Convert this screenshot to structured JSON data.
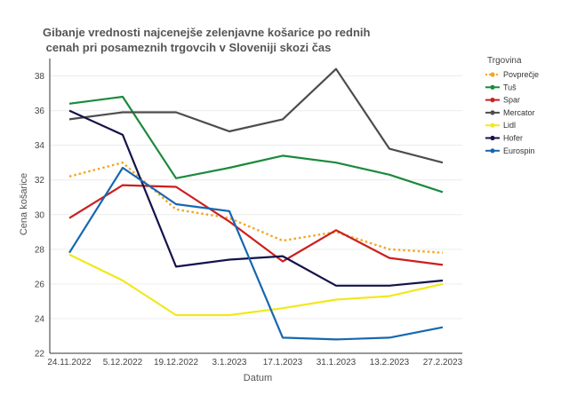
{
  "chart_data": {
    "type": "line",
    "title_lines": [
      "Gibanje vrednosti najcenejše zelenjavne košarice  po rednih",
      " cenah pri posameznih trgovcih v Sloveniji skozi čas"
    ],
    "xlabel": "Datum",
    "ylabel": "Cena košarice",
    "categories": [
      "24.11.2022",
      "5.12.2022",
      "19.12.2022",
      "3.1.2023",
      "17.1.2023",
      "31.1.2023",
      "13.2.2023",
      "27.2.2023"
    ],
    "ylim": [
      22,
      39
    ],
    "yticks": [
      22,
      24,
      26,
      28,
      30,
      32,
      34,
      36,
      38
    ],
    "grid": true,
    "legend": {
      "title": "Trgovina",
      "placement": "right"
    },
    "series": [
      {
        "name": "Povprečje",
        "color": "#F5A623",
        "dash": "dotted",
        "values": [
          32.2,
          33.0,
          30.3,
          29.8,
          28.5,
          29.0,
          28.0,
          27.8
        ]
      },
      {
        "name": "Tuš",
        "color": "#1A8A3C",
        "dash": "solid",
        "values": [
          36.4,
          36.8,
          32.1,
          32.7,
          33.4,
          33.0,
          32.3,
          31.3
        ]
      },
      {
        "name": "Spar",
        "color": "#CC1F1F",
        "dash": "solid",
        "values": [
          29.8,
          31.7,
          31.6,
          29.6,
          27.3,
          29.1,
          27.5,
          27.1
        ]
      },
      {
        "name": "Mercator",
        "color": "#4D4D4D",
        "dash": "solid",
        "values": [
          35.5,
          35.9,
          35.9,
          34.8,
          35.5,
          38.4,
          33.8,
          33.0
        ]
      },
      {
        "name": "Lidl",
        "color": "#F2E81C",
        "dash": "solid",
        "values": [
          27.7,
          26.2,
          24.2,
          24.2,
          24.6,
          25.1,
          25.3,
          26.0
        ]
      },
      {
        "name": "Hofer",
        "color": "#14124A",
        "dash": "solid",
        "values": [
          36.0,
          34.6,
          27.0,
          27.4,
          27.6,
          25.9,
          25.9,
          26.2
        ]
      },
      {
        "name": "Eurospin",
        "color": "#1767B0",
        "dash": "solid",
        "values": [
          27.8,
          32.7,
          30.6,
          30.2,
          22.9,
          22.8,
          22.9,
          23.5
        ]
      }
    ]
  }
}
